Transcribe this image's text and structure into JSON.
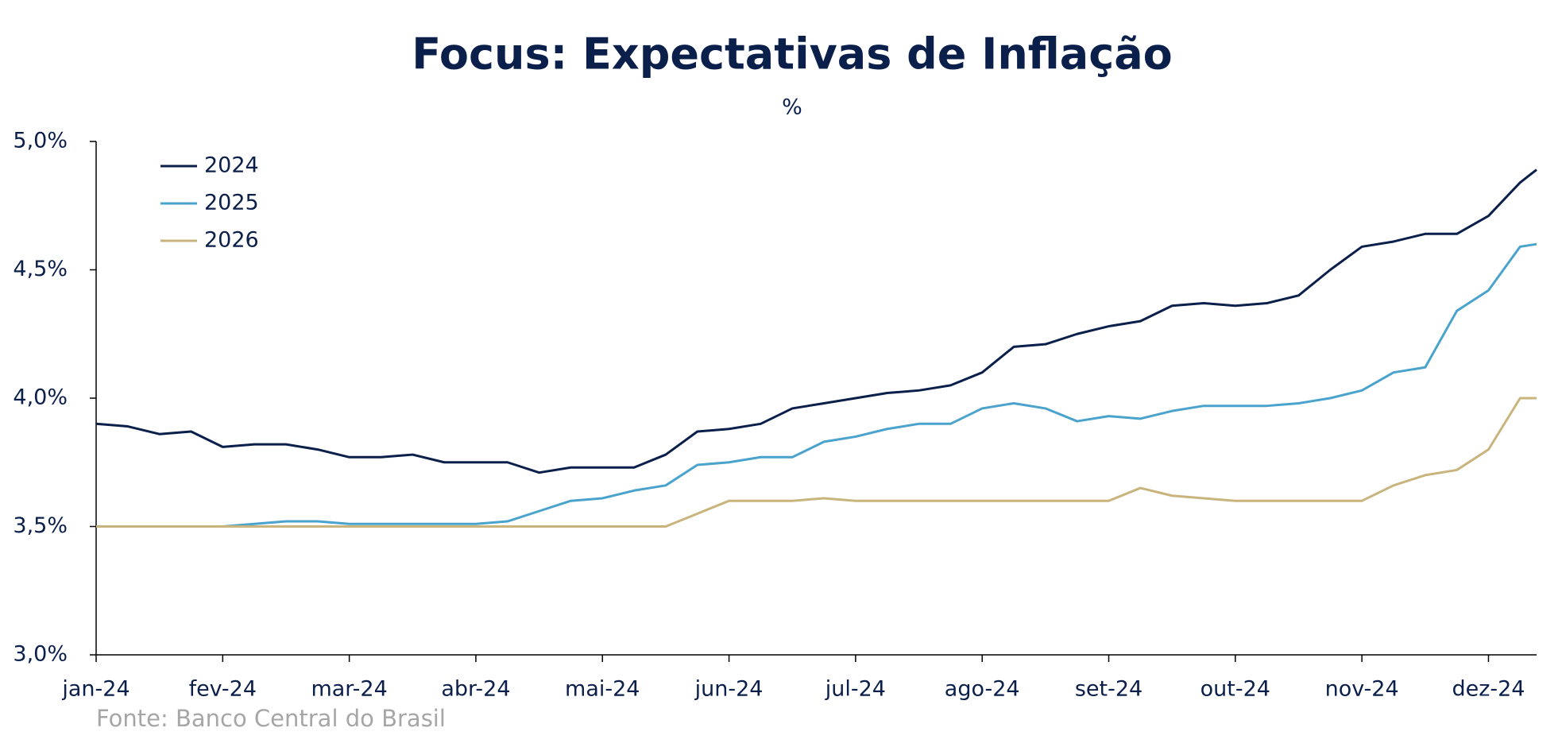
{
  "chart_data": {
    "type": "line",
    "title": "Focus: Expectativas de Inflação",
    "subtitle": "%",
    "source": "Fonte: Banco Central do Brasil",
    "x": [
      0,
      0.25,
      0.5,
      0.75,
      1,
      1.25,
      1.5,
      1.75,
      2,
      2.25,
      2.5,
      2.75,
      3,
      3.25,
      3.5,
      3.75,
      4,
      4.25,
      4.5,
      4.75,
      5,
      5.25,
      5.5,
      5.75,
      6,
      6.25,
      6.5,
      6.75,
      7,
      7.25,
      7.5,
      7.75,
      8,
      8.25,
      8.5,
      8.75,
      9,
      9.25,
      9.5,
      9.75,
      10,
      10.25,
      10.5,
      10.75,
      11,
      11.25,
      11.38
    ],
    "series": [
      {
        "name": "2024",
        "color": "#0b1f4b",
        "values": [
          3.9,
          3.89,
          3.86,
          3.87,
          3.81,
          3.82,
          3.82,
          3.8,
          3.77,
          3.77,
          3.78,
          3.75,
          3.75,
          3.75,
          3.71,
          3.73,
          3.73,
          3.73,
          3.78,
          3.87,
          3.88,
          3.9,
          3.96,
          3.98,
          4.0,
          4.02,
          4.03,
          4.05,
          4.1,
          4.2,
          4.21,
          4.25,
          4.28,
          4.3,
          4.36,
          4.37,
          4.36,
          4.37,
          4.4,
          4.5,
          4.59,
          4.61,
          4.64,
          4.64,
          4.71,
          4.84,
          4.89
        ]
      },
      {
        "name": "2025",
        "color": "#4aa3cc",
        "values": [
          3.5,
          3.5,
          3.5,
          3.5,
          3.5,
          3.51,
          3.52,
          3.52,
          3.51,
          3.51,
          3.51,
          3.51,
          3.51,
          3.52,
          3.56,
          3.6,
          3.61,
          3.64,
          3.66,
          3.74,
          3.75,
          3.77,
          3.77,
          3.83,
          3.85,
          3.88,
          3.9,
          3.9,
          3.96,
          3.98,
          3.96,
          3.91,
          3.93,
          3.92,
          3.95,
          3.97,
          3.97,
          3.97,
          3.98,
          4.0,
          4.03,
          4.1,
          4.12,
          4.34,
          4.42,
          4.59,
          4.6
        ]
      },
      {
        "name": "2026",
        "color": "#c8b47c",
        "values": [
          3.5,
          3.5,
          3.5,
          3.5,
          3.5,
          3.5,
          3.5,
          3.5,
          3.5,
          3.5,
          3.5,
          3.5,
          3.5,
          3.5,
          3.5,
          3.5,
          3.5,
          3.5,
          3.5,
          3.55,
          3.6,
          3.6,
          3.6,
          3.61,
          3.6,
          3.6,
          3.6,
          3.6,
          3.6,
          3.6,
          3.6,
          3.6,
          3.6,
          3.65,
          3.62,
          3.61,
          3.6,
          3.6,
          3.6,
          3.6,
          3.6,
          3.66,
          3.7,
          3.72,
          3.8,
          4.0,
          4.0
        ]
      }
    ],
    "xlim": [
      0,
      11.38
    ],
    "xticks": [
      {
        "value": 0,
        "label": "jan-24"
      },
      {
        "value": 1,
        "label": "fev-24"
      },
      {
        "value": 2,
        "label": "mar-24"
      },
      {
        "value": 3,
        "label": "abr-24"
      },
      {
        "value": 4,
        "label": "mai-24"
      },
      {
        "value": 5,
        "label": "jun-24"
      },
      {
        "value": 6,
        "label": "jul-24"
      },
      {
        "value": 7,
        "label": "ago-24"
      },
      {
        "value": 8,
        "label": "set-24"
      },
      {
        "value": 9,
        "label": "out-24"
      },
      {
        "value": 10,
        "label": "nov-24"
      },
      {
        "value": 11,
        "label": "dez-24"
      }
    ],
    "ylim": [
      3.0,
      5.0
    ],
    "yticks": [
      {
        "value": 3.0,
        "label": "3,0%"
      },
      {
        "value": 3.5,
        "label": "3,5%"
      },
      {
        "value": 4.0,
        "label": "4,0%"
      },
      {
        "value": 4.5,
        "label": "4,5%"
      },
      {
        "value": 5.0,
        "label": "5,0%"
      }
    ],
    "legend": "upper left",
    "grid": false
  }
}
